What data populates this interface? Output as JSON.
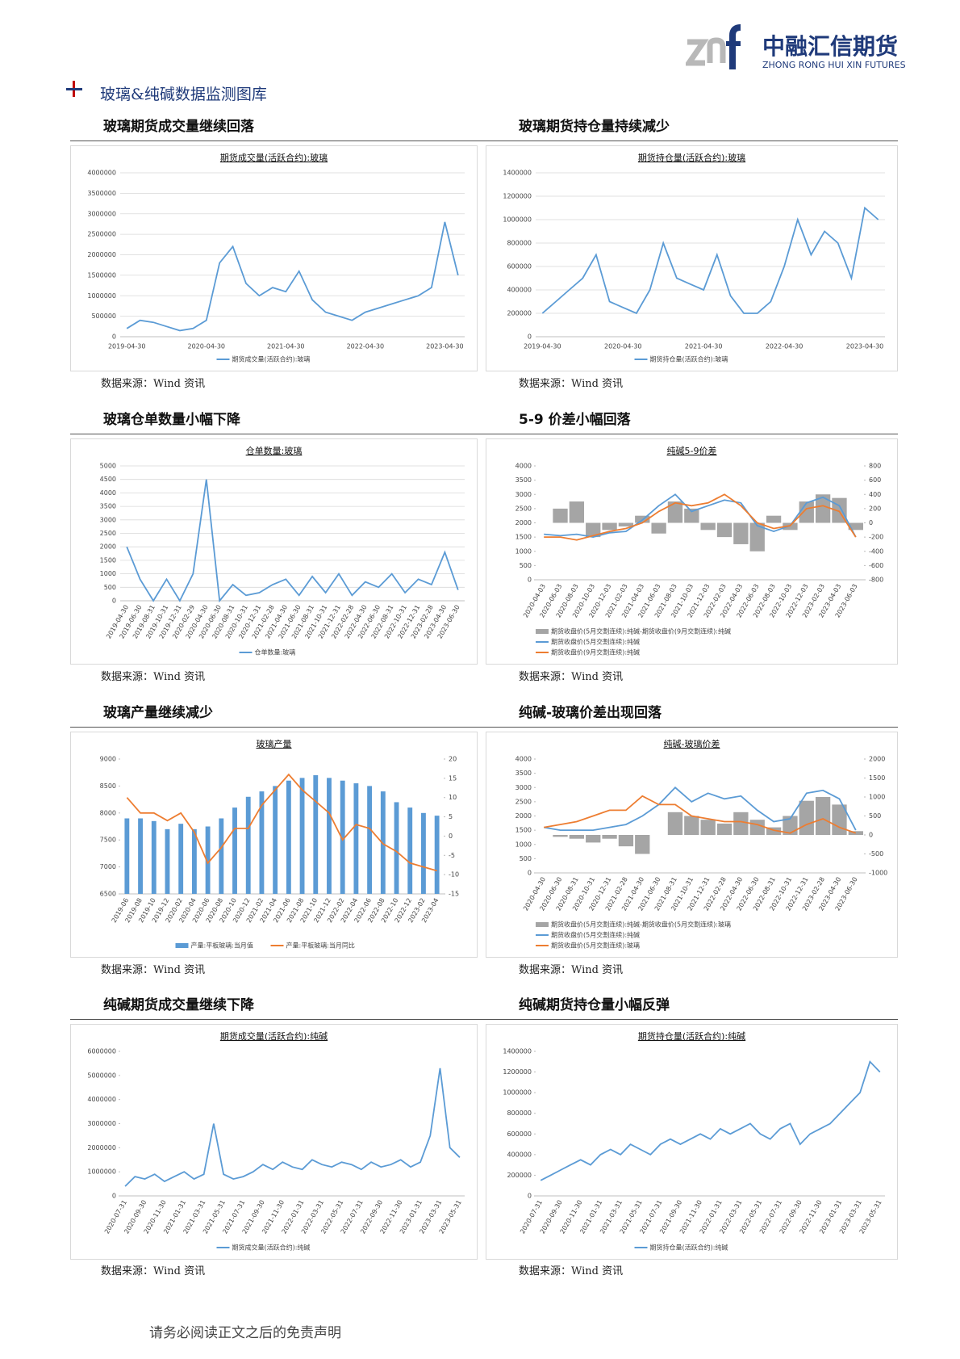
{
  "header": {
    "company_cn": "中融汇信期货",
    "company_en": "ZHONG RONG HUI XIN FUTURES"
  },
  "section_title": "玻璃&纯碱数据监测图库",
  "panels": [
    {
      "heading": "玻璃期货成交量继续回落",
      "source": "数据来源：Wind 资讯"
    },
    {
      "heading": "玻璃期货持仓量持续减少",
      "source": "数据来源：Wind 资讯"
    },
    {
      "heading": "玻璃仓单数量小幅下降",
      "source": "数据来源：Wind 资讯"
    },
    {
      "heading": "5-9 价差小幅回落",
      "source": "数据来源：Wind 资讯"
    },
    {
      "heading": "玻璃产量继续减少",
      "source": "数据来源：Wind 资讯"
    },
    {
      "heading": "纯碱-玻璃价差出现回落",
      "source": "数据来源：Wind 资讯"
    },
    {
      "heading": "纯碱期货成交量继续下降",
      "source": "数据来源：Wind 资讯"
    },
    {
      "heading": "纯碱期货持仓量小幅反弹",
      "source": "数据来源：Wind 资讯"
    }
  ],
  "footer": "请务必阅读正文之后的免责声明",
  "chart_data": [
    {
      "type": "line",
      "title": "期货成交量(活跃合约):玻璃",
      "categories": [
        "2019-04-30",
        null,
        null,
        null,
        null,
        null,
        "2020-04-30",
        null,
        null,
        null,
        null,
        null,
        "2021-04-30",
        null,
        null,
        null,
        null,
        null,
        "2022-04-30",
        null,
        null,
        null,
        null,
        null,
        "2023-04-30",
        null
      ],
      "series": [
        {
          "name": "期货成交量(活跃合约):玻璃",
          "color": "#5b9bd5",
          "values": [
            200000,
            400000,
            350000,
            250000,
            150000,
            200000,
            400000,
            1800000,
            2200000,
            1300000,
            1000000,
            1200000,
            1100000,
            1600000,
            900000,
            600000,
            500000,
            400000,
            600000,
            700000,
            800000,
            900000,
            1000000,
            1200000,
            2800000,
            1500000
          ]
        }
      ],
      "ylim": [
        0,
        4000000
      ],
      "yticks": [
        0,
        500000,
        1000000,
        1500000,
        2000000,
        2500000,
        3000000,
        3500000,
        4000000
      ],
      "grid": true
    },
    {
      "type": "line",
      "title": "期货持仓量(活跃合约):玻璃",
      "categories": [
        "2019-04-30",
        null,
        null,
        null,
        null,
        null,
        "2020-04-30",
        null,
        null,
        null,
        null,
        null,
        "2021-04-30",
        null,
        null,
        null,
        null,
        null,
        "2022-04-30",
        null,
        null,
        null,
        null,
        null,
        "2023-04-30",
        null
      ],
      "series": [
        {
          "name": "期货持仓量(活跃合约):玻璃",
          "color": "#5b9bd5",
          "values": [
            200000,
            300000,
            400000,
            500000,
            700000,
            300000,
            250000,
            200000,
            400000,
            800000,
            500000,
            450000,
            400000,
            700000,
            350000,
            200000,
            200000,
            300000,
            600000,
            1000000,
            700000,
            900000,
            800000,
            500000,
            1100000,
            1000000
          ]
        }
      ],
      "ylim": [
        0,
        1400000
      ],
      "yticks": [
        0,
        200000,
        400000,
        600000,
        800000,
        1000000,
        1200000,
        1400000
      ],
      "grid": true
    },
    {
      "type": "line",
      "title": "仓单数量:玻璃",
      "categories": [
        "2019-04-30",
        "2019-06-30",
        "2019-08-31",
        "2019-10-31",
        "2019-12-31",
        "2020-02-29",
        "2020-04-30",
        "2020-06-30",
        "2020-08-31",
        "2020-10-31",
        "2020-12-31",
        "2021-02-28",
        "2021-04-30",
        "2021-06-30",
        "2021-08-31",
        "2021-10-31",
        "2021-12-31",
        "2022-02-28",
        "2022-04-30",
        "2022-06-30",
        "2022-08-31",
        "2022-10-31",
        "2022-12-31",
        "2023-02-28",
        "2023-04-30",
        "2023-06-30"
      ],
      "series": [
        {
          "name": "仓单数量:玻璃",
          "color": "#5b9bd5",
          "values": [
            2000,
            800,
            0,
            800,
            0,
            1000,
            4500,
            0,
            600,
            200,
            300,
            600,
            800,
            200,
            900,
            300,
            1000,
            200,
            700,
            500,
            1000,
            300,
            800,
            600,
            1800,
            400
          ]
        }
      ],
      "ylim": [
        0,
        5000
      ],
      "yticks": [
        0,
        500,
        1000,
        1500,
        2000,
        2500,
        3000,
        3500,
        4000,
        4500,
        5000
      ],
      "grid": true
    },
    {
      "type": "combo",
      "title": "纯碱5-9价差",
      "categories": [
        "2020-04-03",
        "2020-06-03",
        "2020-08-03",
        "2020-10-03",
        "2020-12-03",
        "2021-02-03",
        "2021-04-03",
        "2021-06-03",
        "2021-08-03",
        "2021-10-03",
        "2021-12-03",
        "2022-02-03",
        "2022-04-03",
        "2022-06-03",
        "2022-08-03",
        "2022-10-03",
        "2022-12-03",
        "2023-02-03",
        "2023-04-03",
        "2023-06-03"
      ],
      "series": [
        {
          "name": "期货收盘价(5月交割连续):纯碱-期货收盘价(9月交割连续):纯碱",
          "type": "bar",
          "axis": "y2",
          "color": "#a5a5a5",
          "values": [
            0,
            200,
            300,
            -200,
            -100,
            -50,
            100,
            -150,
            300,
            200,
            -100,
            -200,
            -300,
            -400,
            100,
            -100,
            300,
            400,
            350,
            -100
          ]
        },
        {
          "name": "期货收盘价(5月交割连续):纯碱",
          "type": "line",
          "color": "#5b9bd5",
          "values": [
            1600,
            1550,
            1600,
            1500,
            1650,
            1700,
            2100,
            2600,
            3000,
            2400,
            2600,
            2800,
            2700,
            1900,
            1700,
            1900,
            2700,
            2900,
            2600,
            1500
          ]
        },
        {
          "name": "期货收盘价(9月交割连续):纯碱",
          "type": "line",
          "color": "#ed7d31",
          "values": [
            1500,
            1500,
            1400,
            1550,
            1700,
            1800,
            2000,
            2400,
            2700,
            2600,
            2700,
            3000,
            2600,
            2000,
            1800,
            1900,
            2500,
            2600,
            2400,
            1500
          ]
        }
      ],
      "ylim": [
        0,
        4000
      ],
      "yticks": [
        0,
        500,
        1000,
        1500,
        2000,
        2500,
        3000,
        3500,
        4000
      ],
      "y2lim": [
        -800,
        800
      ],
      "y2ticks": [
        -800,
        -600,
        -400,
        -200,
        0,
        200,
        400,
        600,
        800
      ],
      "grid": false
    },
    {
      "type": "combo",
      "title": "玻璃产量",
      "categories": [
        "2019-06",
        "2019-08",
        "2019-10",
        "2019-12",
        "2020-02",
        "2020-04",
        "2020-06",
        "2020-08",
        "2020-10",
        "2020-12",
        "2021-02",
        "2021-04",
        "2021-06",
        "2021-08",
        "2021-10",
        "2021-12",
        "2022-02",
        "2022-04",
        "2022-06",
        "2022-08",
        "2022-10",
        "2022-12",
        "2023-02",
        "2023-04"
      ],
      "series": [
        {
          "name": "产量:平板玻璃:当月值",
          "type": "bar",
          "color": "#5b9bd5",
          "values": [
            7900,
            7900,
            7850,
            7700,
            7800,
            7700,
            7750,
            7900,
            8100,
            8300,
            8400,
            8500,
            8600,
            8650,
            8700,
            8650,
            8600,
            8550,
            8500,
            8400,
            8200,
            8100,
            8000,
            7950
          ]
        },
        {
          "name": "产量:平板玻璃:当月同比",
          "type": "line",
          "axis": "y2",
          "color": "#ed7d31",
          "values": [
            10,
            6,
            6,
            4,
            6,
            1,
            -7,
            -3,
            2,
            2,
            8,
            12,
            16,
            12,
            9,
            6,
            -1,
            3,
            2,
            -2,
            -4,
            -7,
            -8,
            -9
          ]
        }
      ],
      "ylim": [
        6500,
        9000
      ],
      "yticks": [
        6500,
        7000,
        7500,
        8000,
        8500,
        9000
      ],
      "y2lim": [
        -15,
        20
      ],
      "y2ticks": [
        -15,
        -10,
        -5,
        0,
        5,
        10,
        15,
        20
      ],
      "grid": false
    },
    {
      "type": "combo",
      "title": "纯碱-玻璃价差",
      "categories": [
        "2020-04-30",
        "2020-06-30",
        "2020-08-31",
        "2020-10-31",
        "2020-12-31",
        "2021-02-28",
        "2021-04-30",
        "2021-06-30",
        "2021-08-31",
        "2021-10-31",
        "2021-12-31",
        "2022-02-28",
        "2022-04-30",
        "2022-06-30",
        "2022-08-31",
        "2022-10-31",
        "2022-12-31",
        "2023-02-28",
        "2023-04-30",
        "2023-06-30"
      ],
      "series": [
        {
          "name": "期货收盘价(5月交割连续):纯碱-期货收盘价(5月交割连续):玻璃",
          "type": "bar",
          "axis": "y2",
          "color": "#a5a5a5",
          "values": [
            0,
            -50,
            -100,
            -200,
            -100,
            -300,
            -500,
            0,
            600,
            500,
            400,
            300,
            600,
            400,
            200,
            500,
            900,
            1000,
            800,
            100
          ]
        },
        {
          "name": "期货收盘价(5月交割连续):纯碱",
          "type": "line",
          "color": "#5b9bd5",
          "values": [
            1600,
            1500,
            1500,
            1500,
            1600,
            1700,
            2000,
            2400,
            3000,
            2500,
            2800,
            2600,
            2700,
            2200,
            1800,
            1900,
            2800,
            2900,
            2600,
            1500
          ]
        },
        {
          "name": "期货收盘价(5月交割连续):玻璃",
          "type": "line",
          "color": "#ed7d31",
          "values": [
            1600,
            1700,
            1800,
            2000,
            2200,
            2200,
            2700,
            2400,
            2400,
            2000,
            1900,
            1800,
            1800,
            1700,
            1500,
            1400,
            1700,
            1900,
            1600,
            1400
          ]
        }
      ],
      "ylim": [
        0,
        4000
      ],
      "yticks": [
        0,
        500,
        1000,
        1500,
        2000,
        2500,
        3000,
        3500,
        4000
      ],
      "y2lim": [
        -1000,
        2000
      ],
      "y2ticks": [
        -1000,
        -500,
        0,
        500,
        1000,
        1500,
        2000
      ],
      "grid": false
    },
    {
      "type": "line",
      "title": "期货成交量(活跃合约):纯碱",
      "categories": [
        "2020-07-31",
        null,
        "2020-09-30",
        null,
        "2020-11-30",
        null,
        "2021-01-31",
        null,
        "2021-03-31",
        null,
        "2021-05-31",
        null,
        "2021-07-31",
        null,
        "2021-09-30",
        null,
        "2021-11-30",
        null,
        "2022-01-31",
        null,
        "2022-03-31",
        null,
        "2022-05-31",
        null,
        "2022-07-31",
        null,
        "2022-09-30",
        null,
        "2022-11-30",
        null,
        "2023-01-31",
        null,
        "2023-03-31",
        null,
        "2023-05-31"
      ],
      "series": [
        {
          "name": "期货成交量(活跃合约):纯碱",
          "color": "#5b9bd5",
          "values": [
            400000,
            800000,
            700000,
            900000,
            600000,
            800000,
            1000000,
            700000,
            900000,
            3000000,
            900000,
            700000,
            800000,
            1000000,
            1300000,
            1100000,
            1400000,
            1200000,
            1100000,
            1500000,
            1300000,
            1200000,
            1400000,
            1300000,
            1100000,
            1400000,
            1200000,
            1300000,
            1500000,
            1200000,
            1400000,
            2500000,
            5300000,
            2000000,
            1600000
          ]
        }
      ],
      "ylim": [
        0,
        6000000
      ],
      "yticks": [
        0,
        1000000,
        2000000,
        3000000,
        4000000,
        5000000,
        6000000
      ],
      "grid": false
    },
    {
      "type": "line",
      "title": "期货持仓量(活跃合约):纯碱",
      "categories": [
        "2020-07-31",
        null,
        "2020-09-30",
        null,
        "2020-11-30",
        null,
        "2021-01-31",
        null,
        "2021-03-31",
        null,
        "2021-05-31",
        null,
        "2021-07-31",
        null,
        "2021-09-30",
        null,
        "2021-11-30",
        null,
        "2022-01-31",
        null,
        "2022-03-31",
        null,
        "2022-05-31",
        null,
        "2022-07-31",
        null,
        "2022-09-30",
        null,
        "2022-11-30",
        null,
        "2023-01-31",
        null,
        "2023-03-31",
        null,
        "2023-05-31"
      ],
      "series": [
        {
          "name": "期货持仓量(活跃合约):纯碱",
          "color": "#5b9bd5",
          "values": [
            150000,
            200000,
            250000,
            300000,
            350000,
            300000,
            400000,
            450000,
            400000,
            500000,
            450000,
            400000,
            500000,
            550000,
            500000,
            550000,
            600000,
            550000,
            650000,
            600000,
            650000,
            700000,
            600000,
            550000,
            650000,
            700000,
            500000,
            600000,
            650000,
            700000,
            800000,
            900000,
            1000000,
            1300000,
            1200000
          ]
        }
      ],
      "ylim": [
        0,
        1400000
      ],
      "yticks": [
        0,
        200000,
        400000,
        600000,
        800000,
        1000000,
        1200000,
        1400000
      ],
      "grid": false
    }
  ]
}
